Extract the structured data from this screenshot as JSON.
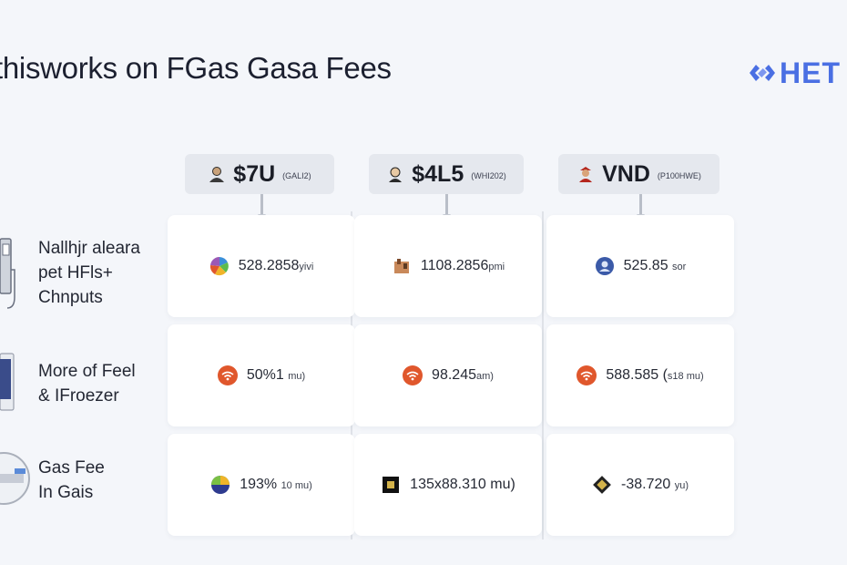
{
  "page": {
    "title": "thisworks on FGas Gasa Fees",
    "logo_text": "HET"
  },
  "columns": [
    {
      "main": "$7U",
      "sub": "(GALI2)"
    },
    {
      "main": "$4L5",
      "sub": "(WHI202)"
    },
    {
      "main": "VND",
      "sub": "(P100HWE)"
    }
  ],
  "rows": [
    {
      "label_lines": [
        "Nallhjr aleara",
        "pet HFls+",
        "Chnputs"
      ]
    },
    {
      "label_lines": [
        "More of Feel",
        "& IFroezer"
      ]
    },
    {
      "label_lines": [
        "Gas Fee",
        "In Gais"
      ]
    }
  ],
  "cells": [
    [
      {
        "value": "528.2858",
        "unit": "yivi"
      },
      {
        "value": "1108.2856",
        "unit": "pmi"
      },
      {
        "value": "525.85",
        "unit": "sor"
      }
    ],
    [
      {
        "value": "50%1",
        "unit": "mu)"
      },
      {
        "value": "98.245",
        "unit": "am)"
      },
      {
        "value": "588.585 (",
        "unit": "s18 mu)"
      }
    ],
    [
      {
        "value": "193%",
        "unit": "10 mu)"
      },
      {
        "value": "135x",
        "unit": "£ ",
        "tail": "88.310 mu)"
      },
      {
        "value": "-38.720",
        "unit": "yu)"
      }
    ]
  ],
  "colors": {
    "accent": "#4a6fe3",
    "wifi_orange": "#e0572c",
    "background": "#f4f6fa"
  }
}
